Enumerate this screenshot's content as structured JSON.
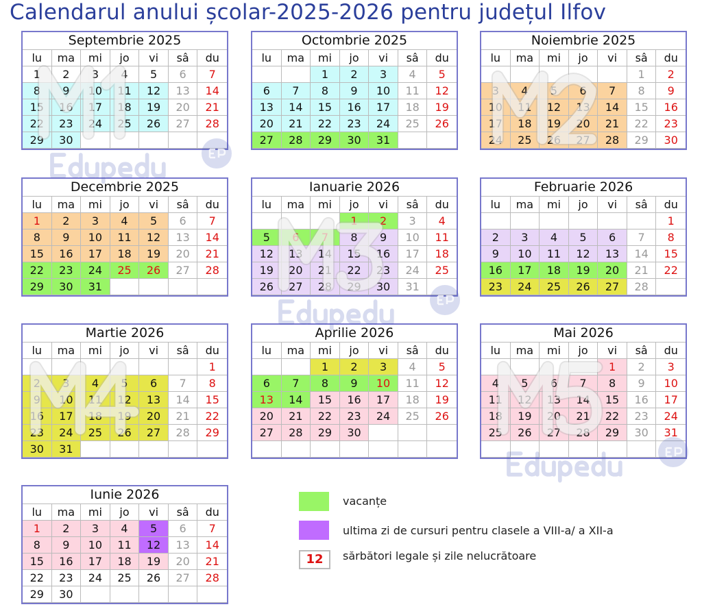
{
  "title": "Calendarul anului școlar-2025-2026 pentru județul Ilfov",
  "weekdays": [
    "lu",
    "ma",
    "mi",
    "jo",
    "vi",
    "sâ",
    "du"
  ],
  "colors": {
    "M1": "#ccfbfb",
    "M2": "#fbd39f",
    "M3": "#e8d6f8",
    "M4": "#e6e64a",
    "M5": "#fdd6e0",
    "vacation": "#99f566",
    "last_day": "#c06cff",
    "holiday_text": "#d11111"
  },
  "months": [
    {
      "name": "Septembrie 2025",
      "offset": 0,
      "days": 30,
      "weeks": 5,
      "holidays": [],
      "fills": {
        "M1": [
          8,
          9,
          10,
          11,
          12,
          15,
          16,
          17,
          18,
          19,
          22,
          23,
          24,
          25,
          26,
          29,
          30
        ]
      }
    },
    {
      "name": "Octombrie 2025",
      "offset": 2,
      "days": 31,
      "weeks": 5,
      "holidays": [],
      "fills": {
        "M1": [
          1,
          2,
          3,
          6,
          7,
          8,
          9,
          10,
          13,
          14,
          15,
          16,
          17,
          20,
          21,
          22,
          23,
          24
        ],
        "vacation": [
          27,
          28,
          29,
          30,
          31
        ]
      }
    },
    {
      "name": "Noiembrie 2025",
      "offset": 5,
      "days": 30,
      "weeks": 5,
      "holidays": [],
      "fills": {
        "M2": [
          3,
          4,
          5,
          6,
          7,
          10,
          11,
          12,
          13,
          14,
          17,
          18,
          19,
          20,
          21,
          24,
          25,
          26,
          27,
          28
        ]
      }
    },
    {
      "name": "Decembrie 2025",
      "offset": 0,
      "days": 31,
      "weeks": 5,
      "holidays": [
        1,
        25,
        26
      ],
      "fills": {
        "M2": [
          1,
          2,
          3,
          4,
          5,
          8,
          9,
          10,
          11,
          12,
          15,
          16,
          17,
          18,
          19
        ],
        "vacation": [
          22,
          23,
          24,
          25,
          26,
          29,
          30,
          31
        ]
      }
    },
    {
      "name": "Ianuarie 2026",
      "offset": 3,
      "days": 31,
      "weeks": 5,
      "holidays": [
        1,
        2,
        6,
        7
      ],
      "fills": {
        "vacation": [
          1,
          2,
          5,
          6,
          7
        ],
        "M3": [
          8,
          9,
          12,
          13,
          14,
          15,
          16,
          19,
          20,
          21,
          22,
          23,
          26,
          27,
          28,
          29,
          30
        ]
      }
    },
    {
      "name": "Februarie 2026",
      "offset": 6,
      "days": 28,
      "weeks": 5,
      "holidays": [],
      "fills": {
        "M3": [
          2,
          3,
          4,
          5,
          6,
          9,
          10,
          11,
          12,
          13
        ],
        "vacation": [
          16,
          17,
          18,
          19,
          20
        ],
        "M4": [
          23,
          24,
          25,
          26,
          27
        ]
      }
    },
    {
      "name": "Martie 2026",
      "offset": 6,
      "days": 31,
      "weeks": 6,
      "holidays": [],
      "fills": {
        "M4": [
          2,
          3,
          4,
          5,
          6,
          9,
          10,
          11,
          12,
          13,
          16,
          17,
          18,
          19,
          20,
          23,
          24,
          25,
          26,
          27,
          30,
          31
        ]
      }
    },
    {
      "name": "Aprilie 2026",
      "offset": 2,
      "days": 30,
      "weeks": 6,
      "holidays": [
        10,
        13
      ],
      "fills": {
        "M4": [
          1,
          2,
          3
        ],
        "vacation": [
          6,
          7,
          8,
          9,
          10,
          13,
          14
        ],
        "M5": [
          15,
          16,
          17,
          20,
          21,
          22,
          23,
          24,
          27,
          28,
          29,
          30
        ]
      }
    },
    {
      "name": "Mai 2026",
      "offset": 4,
      "days": 31,
      "weeks": 6,
      "holidays": [
        1
      ],
      "fills": {
        "M5": [
          1,
          4,
          5,
          6,
          7,
          8,
          11,
          12,
          13,
          14,
          15,
          18,
          19,
          20,
          21,
          22,
          25,
          26,
          27,
          28,
          29
        ]
      }
    },
    {
      "name": "Iunie 2026",
      "offset": 0,
      "days": 30,
      "weeks": 5,
      "holidays": [
        1
      ],
      "fills": {
        "M5": [
          1,
          2,
          3,
          4,
          8,
          9,
          10,
          11,
          15,
          16,
          17,
          18,
          19
        ],
        "last_day": [
          5,
          12
        ]
      }
    }
  ],
  "watermarks": {
    "modules": [
      "M1",
      "M2",
      "M3",
      "M4",
      "M5"
    ],
    "brand": "Edupedu"
  },
  "legend": [
    {
      "key": "vacation",
      "label": "vacanțe"
    },
    {
      "key": "last_day",
      "label": "ultima zi de cursuri pentru clasele a VIII-a/ a XII-a"
    },
    {
      "key": "holiday",
      "sample": "12",
      "label": "sărbători legale  și zile nelucrătoare"
    }
  ]
}
